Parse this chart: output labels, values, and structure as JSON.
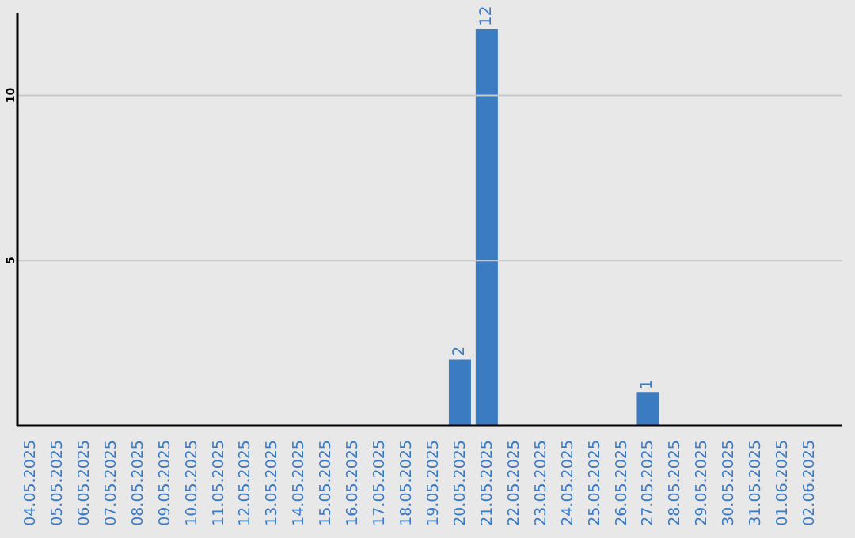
{
  "chart_data": {
    "type": "bar",
    "categories": [
      "04.05.2025",
      "05.05.2025",
      "06.05.2025",
      "07.05.2025",
      "08.05.2025",
      "09.05.2025",
      "10.05.2025",
      "11.05.2025",
      "12.05.2025",
      "13.05.2025",
      "14.05.2025",
      "15.05.2025",
      "16.05.2025",
      "17.05.2025",
      "18.05.2025",
      "19.05.2025",
      "20.05.2025",
      "21.05.2025",
      "22.05.2025",
      "23.05.2025",
      "24.05.2025",
      "25.05.2025",
      "26.05.2025",
      "27.05.2025",
      "28.05.2025",
      "29.05.2025",
      "30.05.2025",
      "31.05.2025",
      "01.06.2025",
      "02.06.2025"
    ],
    "values": [
      0,
      0,
      0,
      0,
      0,
      0,
      0,
      0,
      0,
      0,
      0,
      0,
      0,
      0,
      0,
      0,
      2,
      12,
      0,
      0,
      0,
      0,
      0,
      1,
      0,
      0,
      0,
      0,
      0,
      0
    ],
    "value_labels": [
      null,
      null,
      null,
      null,
      null,
      null,
      null,
      null,
      null,
      null,
      null,
      null,
      null,
      null,
      null,
      null,
      "2",
      "12",
      null,
      null,
      null,
      null,
      null,
      "1",
      null,
      null,
      null,
      null,
      null,
      null
    ],
    "color": "#3a7bc2",
    "ylim": [
      0,
      12.5
    ],
    "yticks": [
      5,
      10
    ],
    "grid": "y"
  }
}
